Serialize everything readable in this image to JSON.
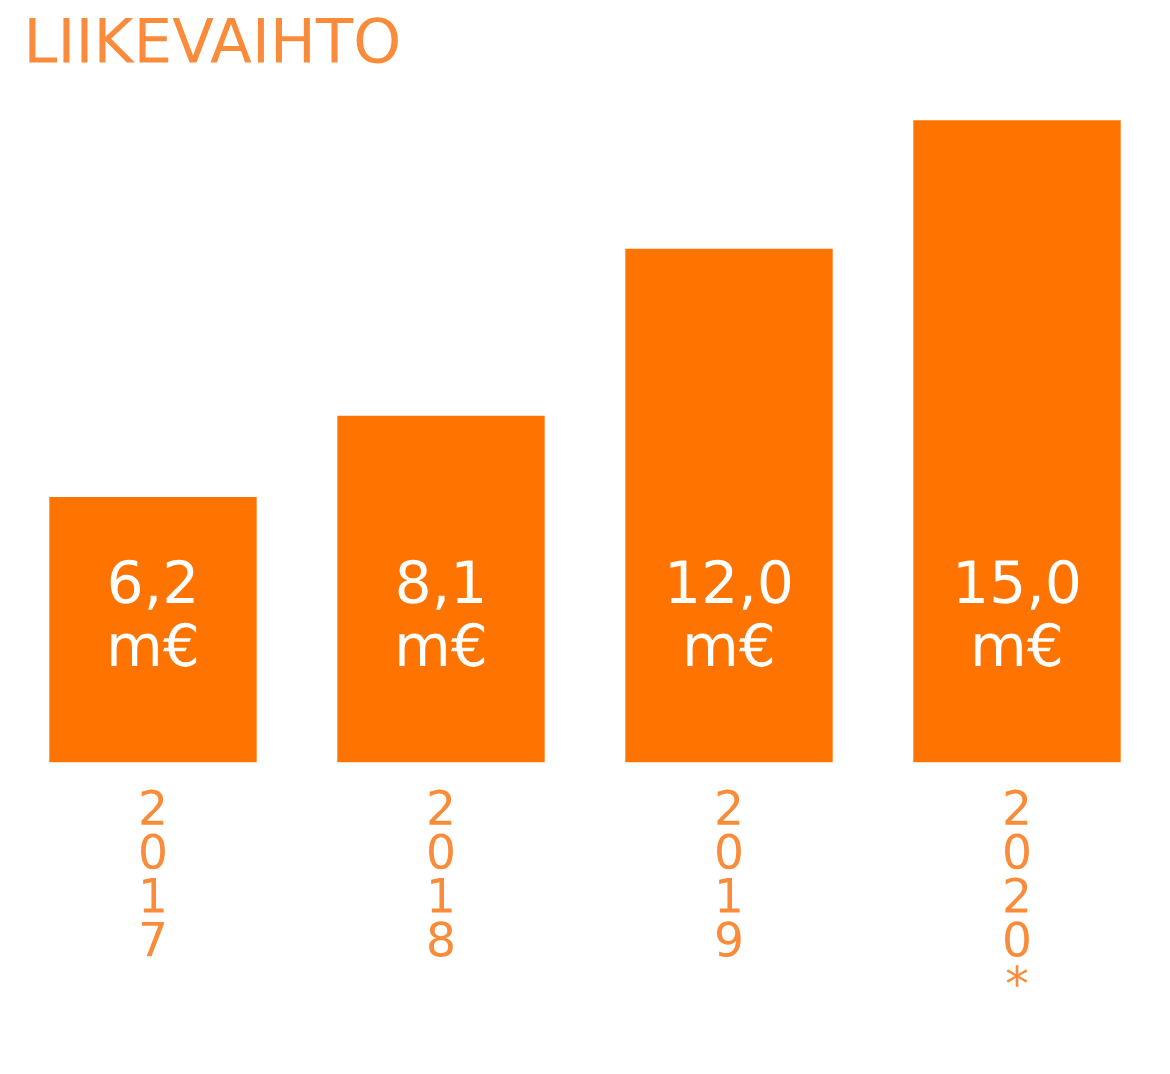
{
  "chart_data": {
    "type": "bar",
    "title": "LIIKEVAIHTO",
    "categories": [
      "2017",
      "2018",
      "2019",
      "2020*"
    ],
    "values": [
      6.2,
      8.1,
      12.0,
      15.0
    ],
    "value_labels": [
      "6,2\nm€",
      "8,1\nm€",
      "12,0\nm€",
      "15,0\nm€"
    ],
    "color": "#ff7300"
  }
}
